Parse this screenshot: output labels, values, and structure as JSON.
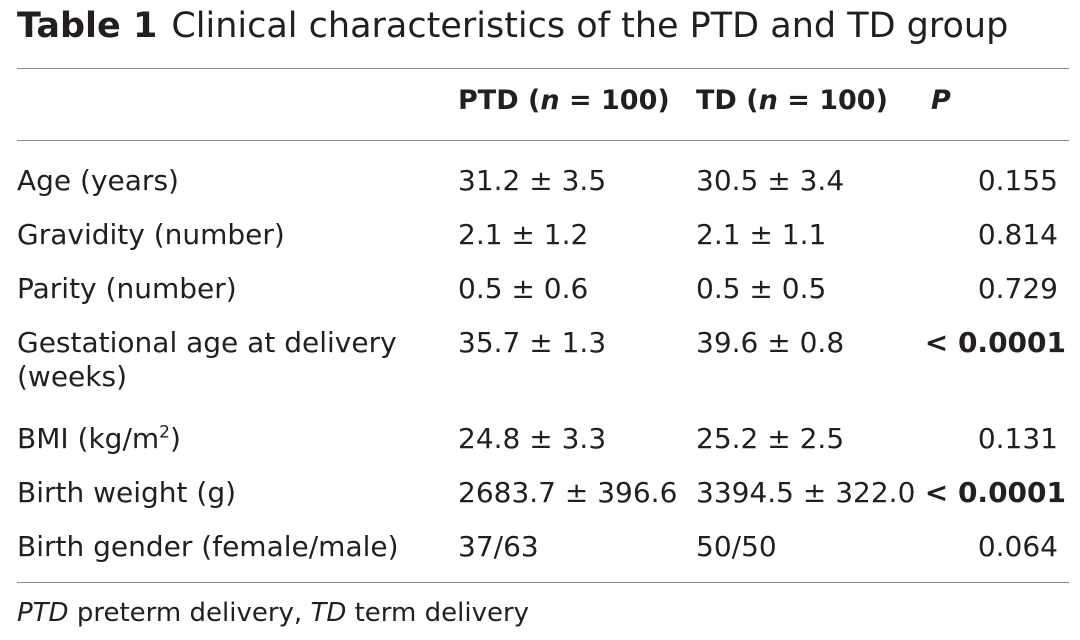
{
  "table": {
    "label": "Table 1",
    "caption": "Clinical characteristics of the PTD and TD group",
    "header": {
      "ptd_prefix": "PTD (",
      "ptd_n": "n",
      "ptd_suffix": " = 100)",
      "td_prefix": "TD (",
      "td_n": "n",
      "td_suffix": " = 100)",
      "p": "P"
    },
    "rows": [
      {
        "variable": "Age (years)",
        "ptd": "31.2 ± 3.5",
        "td": "30.5 ± 3.4",
        "p": "0.155"
      },
      {
        "variable": "Gravidity (number)",
        "ptd": "2.1 ± 1.2",
        "td": "2.1 ± 1.1",
        "p": "0.814"
      },
      {
        "variable": "Parity (number)",
        "ptd": "0.5 ± 0.6",
        "td": "0.5 ± 0.5",
        "p": "0.729"
      },
      {
        "variable": "Gestational age at delivery (weeks)",
        "ptd": "35.7 ± 1.3",
        "td": "39.6 ± 0.8",
        "p": "< 0.0001"
      },
      {
        "variable_prefix": "BMI (kg/m",
        "variable_sup": "2",
        "variable_suffix": ")",
        "ptd": "24.8 ± 3.3",
        "td": "25.2 ± 2.5",
        "p": "0.131"
      },
      {
        "variable": "Birth weight (g)",
        "ptd": "2683.7 ± 396.6",
        "td": "3394.5 ± 322.0",
        "p": "< 0.0001"
      },
      {
        "variable": "Birth gender (female/male)",
        "ptd": "37/63",
        "td": "50/50",
        "p": "0.064"
      }
    ],
    "footnote": {
      "abbr1": "PTD",
      "def1": " preterm delivery, ",
      "abbr2": "TD",
      "def2": " term delivery"
    }
  }
}
